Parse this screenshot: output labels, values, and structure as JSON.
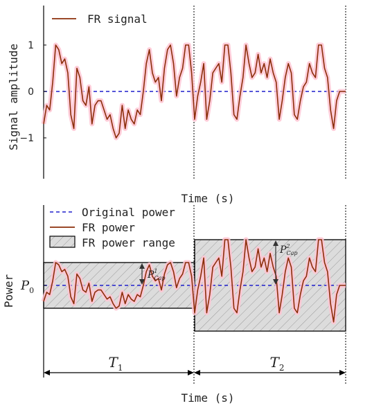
{
  "chart_data": [
    {
      "type": "line",
      "ylabel": "Signal amplitude",
      "xlabel": "Time (s)",
      "yticks": [
        "1",
        "0",
        "−1"
      ],
      "ylim": [
        -1.9,
        1.8
      ],
      "legend": {
        "position": "top-left",
        "entries": [
          "FR signal"
        ]
      },
      "reference_line": {
        "y": 0,
        "style": "dashed",
        "color": "#1f1fcc"
      },
      "series": [
        {
          "name": "FR signal",
          "color": "#8b2e0a",
          "glow_color": "#ffc4d2",
          "x": [
            0.0,
            0.01,
            0.02,
            0.03,
            0.04,
            0.05,
            0.06,
            0.07,
            0.08,
            0.09,
            0.1,
            0.11,
            0.12,
            0.13,
            0.14,
            0.15,
            0.16,
            0.17,
            0.18,
            0.19,
            0.2,
            0.21,
            0.22,
            0.23,
            0.24,
            0.25,
            0.26,
            0.27,
            0.28,
            0.29,
            0.3,
            0.31,
            0.32,
            0.33,
            0.34,
            0.35,
            0.36,
            0.37,
            0.38,
            0.39,
            0.4,
            0.41,
            0.42,
            0.43,
            0.44,
            0.45,
            0.46,
            0.47,
            0.48,
            0.49,
            0.5,
            0.51,
            0.52,
            0.53,
            0.54,
            0.55,
            0.56,
            0.57,
            0.58,
            0.59,
            0.6,
            0.61,
            0.62,
            0.63,
            0.64,
            0.65,
            0.66,
            0.67,
            0.68,
            0.69,
            0.7,
            0.71,
            0.72,
            0.73,
            0.74,
            0.75,
            0.76,
            0.77,
            0.78,
            0.79,
            0.8,
            0.81,
            0.82,
            0.83,
            0.84,
            0.85,
            0.86,
            0.87,
            0.88,
            0.89,
            0.9,
            0.91,
            0.92,
            0.93,
            0.94,
            0.95,
            0.96,
            0.97,
            0.98,
            0.99,
            1.0
          ],
          "y": [
            -0.7,
            -0.3,
            -0.4,
            0.2,
            1.0,
            0.9,
            0.6,
            0.7,
            0.4,
            -0.5,
            -0.8,
            0.5,
            0.3,
            -0.2,
            -0.3,
            0.1,
            -0.7,
            -0.3,
            -0.2,
            -0.2,
            -0.4,
            -0.6,
            -0.5,
            -0.8,
            -1.0,
            -0.9,
            -0.3,
            -0.8,
            -0.4,
            -0.6,
            -0.7,
            -0.4,
            -0.5,
            0.0,
            0.6,
            0.9,
            0.4,
            0.2,
            0.3,
            -0.2,
            0.5,
            0.9,
            1.0,
            0.6,
            -0.1,
            0.3,
            0.5,
            1.0,
            1.0,
            0.4,
            -0.6,
            -0.1,
            0.2,
            0.6,
            -0.6,
            -0.2,
            0.4,
            0.5,
            0.6,
            0.2,
            1.0,
            1.0,
            0.4,
            -0.5,
            -0.6,
            -0.1,
            0.3,
            1.0,
            0.6,
            0.3,
            0.4,
            0.8,
            0.4,
            0.6,
            0.3,
            0.7,
            0.4,
            0.2,
            -0.6,
            -0.2,
            0.3,
            0.6,
            0.4,
            -0.5,
            -0.6,
            -0.2,
            0.1,
            0.2,
            0.6,
            0.4,
            0.3,
            1.0,
            1.0,
            0.5,
            0.3,
            -0.4,
            -0.8,
            -0.2,
            0.0,
            0.0,
            0.0
          ]
        }
      ]
    },
    {
      "type": "line",
      "ylabel": "Power",
      "xlabel": "Time (s)",
      "ytick_label": {
        "main": "P",
        "sub": "0"
      },
      "ylim": [
        -2.1,
        1.7
      ],
      "legend": {
        "position": "top-left",
        "entries": [
          "Original power",
          "FR power",
          "FR power range"
        ]
      },
      "periods": [
        {
          "label": "T",
          "sub": "1",
          "x_start": 0.0,
          "x_end": 0.5,
          "band": [
            -0.5,
            0.5
          ],
          "capacity_label": {
            "main": "P",
            "sub": "Cap",
            "sup": "1"
          }
        },
        {
          "label": "T",
          "sub": "2",
          "x_start": 0.5,
          "x_end": 1.0,
          "band": [
            -1.0,
            1.0
          ],
          "capacity_label": {
            "main": "P",
            "sub": "Cap",
            "sup": "2"
          }
        }
      ],
      "series": [
        {
          "name": "Original power",
          "style": "dashed",
          "color": "#1f1fcc",
          "y_constant": 0
        },
        {
          "name": "FR power",
          "color": "#8b2e0a",
          "glow_color": "#ffc4d2",
          "note_scaling": "FR power = band half-width × FR signal in each period"
        },
        {
          "name": "FR power range",
          "fill": "hatched",
          "fill_color": "#d9d9d9"
        }
      ]
    }
  ]
}
